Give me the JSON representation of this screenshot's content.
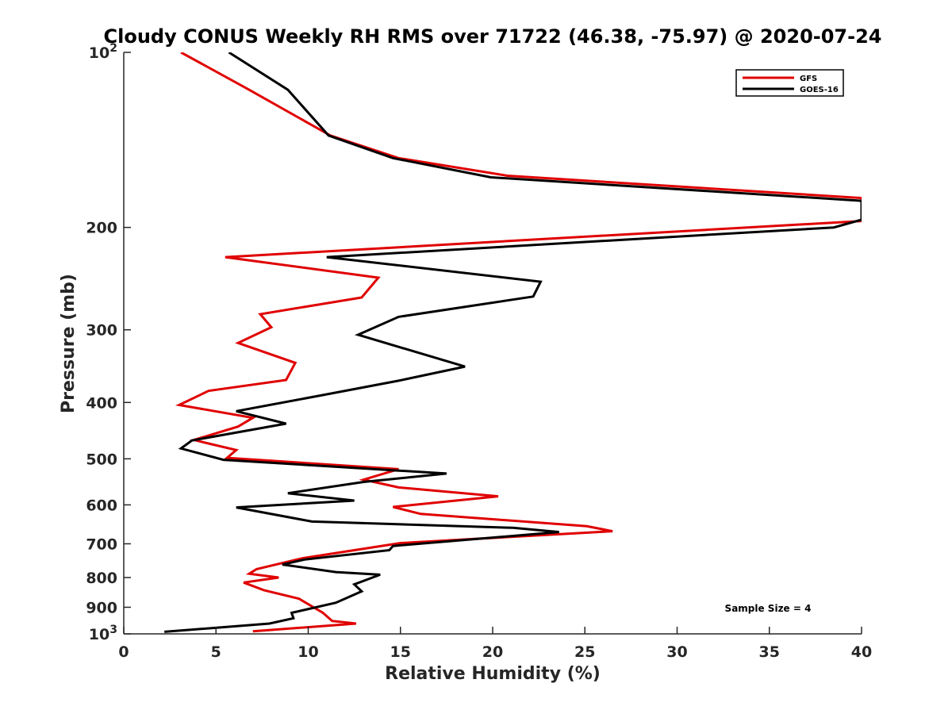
{
  "chart_data": {
    "type": "line",
    "title": "Cloudy CONUS Weekly RH RMS over 71722 (46.38, -75.97) @ 2020-07-24",
    "xlabel": "Relative Humidity (%)",
    "ylabel": "Pressure (mb)",
    "xlim": [
      0,
      40
    ],
    "ylim": [
      100,
      1000
    ],
    "yscale": "log",
    "y_reversed": true,
    "grid": false,
    "x_ticks": [
      0,
      5,
      10,
      15,
      20,
      25,
      30,
      35,
      40
    ],
    "x_tick_labels": [
      "0",
      "5",
      "10",
      "15",
      "20",
      "25",
      "30",
      "35",
      "40"
    ],
    "y_ticks": [
      100,
      200,
      300,
      400,
      500,
      600,
      700,
      800,
      900,
      1000
    ],
    "y_tick_labels": [
      {
        "base": "10",
        "sup": "2"
      },
      {
        "base": "200",
        "sup": ""
      },
      {
        "base": "300",
        "sup": ""
      },
      {
        "base": "400",
        "sup": ""
      },
      {
        "base": "500",
        "sup": ""
      },
      {
        "base": "600",
        "sup": ""
      },
      {
        "base": "700",
        "sup": ""
      },
      {
        "base": "800",
        "sup": ""
      },
      {
        "base": "900",
        "sup": ""
      },
      {
        "base": "10",
        "sup": "3"
      }
    ],
    "legend": {
      "position": "top-right",
      "entries": [
        {
          "name": "GFS",
          "color": "#e00000"
        },
        {
          "name": "GOES-16",
          "color": "#000000"
        }
      ]
    },
    "annotation": "Sample Size = 4",
    "series": [
      {
        "name": "GFS",
        "color": "#e00000",
        "points": [
          [
            3.1,
            100
          ],
          [
            6.8,
            116
          ],
          [
            11.2,
            139
          ],
          [
            14.9,
            152
          ],
          [
            20.8,
            163
          ],
          [
            40.0,
            178
          ],
          [
            40.0,
            195
          ],
          [
            5.5,
            225
          ],
          [
            13.8,
            244
          ],
          [
            12.9,
            264
          ],
          [
            7.4,
            282
          ],
          [
            8.0,
            297
          ],
          [
            6.2,
            316
          ],
          [
            9.3,
            342
          ],
          [
            8.8,
            366
          ],
          [
            4.6,
            382
          ],
          [
            3.0,
            404
          ],
          [
            7.0,
            425
          ],
          [
            6.2,
            440
          ],
          [
            3.8,
            464
          ],
          [
            6.1,
            483
          ],
          [
            5.6,
            498
          ],
          [
            14.9,
            521
          ],
          [
            13.0,
            543
          ],
          [
            14.9,
            560
          ],
          [
            20.3,
            580
          ],
          [
            14.6,
            605
          ],
          [
            16.1,
            622
          ],
          [
            25.1,
            653
          ],
          [
            26.5,
            666
          ],
          [
            15.0,
            698
          ],
          [
            9.7,
            741
          ],
          [
            7.2,
            774
          ],
          [
            6.8,
            788
          ],
          [
            8.4,
            800
          ],
          [
            6.5,
            816
          ],
          [
            7.6,
            841
          ],
          [
            9.5,
            870
          ],
          [
            10.8,
            920
          ],
          [
            11.3,
            950
          ],
          [
            12.6,
            960
          ],
          [
            7.0,
            990
          ]
        ]
      },
      {
        "name": "GOES-16",
        "color": "#000000",
        "points": [
          [
            5.7,
            100
          ],
          [
            8.9,
            116
          ],
          [
            11.1,
            139
          ],
          [
            14.6,
            152
          ],
          [
            19.9,
            164
          ],
          [
            40.0,
            180
          ],
          [
            40.0,
            194
          ],
          [
            38.5,
            200
          ],
          [
            11.0,
            225
          ],
          [
            22.6,
            248
          ],
          [
            22.2,
            263
          ],
          [
            14.9,
            285
          ],
          [
            12.7,
            306
          ],
          [
            18.5,
            347
          ],
          [
            14.9,
            367
          ],
          [
            10.7,
            389
          ],
          [
            6.1,
            414
          ],
          [
            8.8,
            435
          ],
          [
            3.7,
            465
          ],
          [
            3.1,
            480
          ],
          [
            5.4,
            502
          ],
          [
            17.5,
            530
          ],
          [
            13.0,
            548
          ],
          [
            8.9,
            573
          ],
          [
            12.5,
            590
          ],
          [
            6.1,
            606
          ],
          [
            10.2,
            641
          ],
          [
            21.1,
            657
          ],
          [
            23.6,
            668
          ],
          [
            14.6,
            706
          ],
          [
            14.4,
            718
          ],
          [
            9.8,
            745
          ],
          [
            8.6,
            760
          ],
          [
            11.5,
            783
          ],
          [
            13.9,
            791
          ],
          [
            12.5,
            822
          ],
          [
            12.9,
            845
          ],
          [
            11.5,
            884
          ],
          [
            9.1,
            920
          ],
          [
            9.2,
            940
          ],
          [
            7.9,
            960
          ],
          [
            2.2,
            992
          ]
        ]
      }
    ]
  }
}
